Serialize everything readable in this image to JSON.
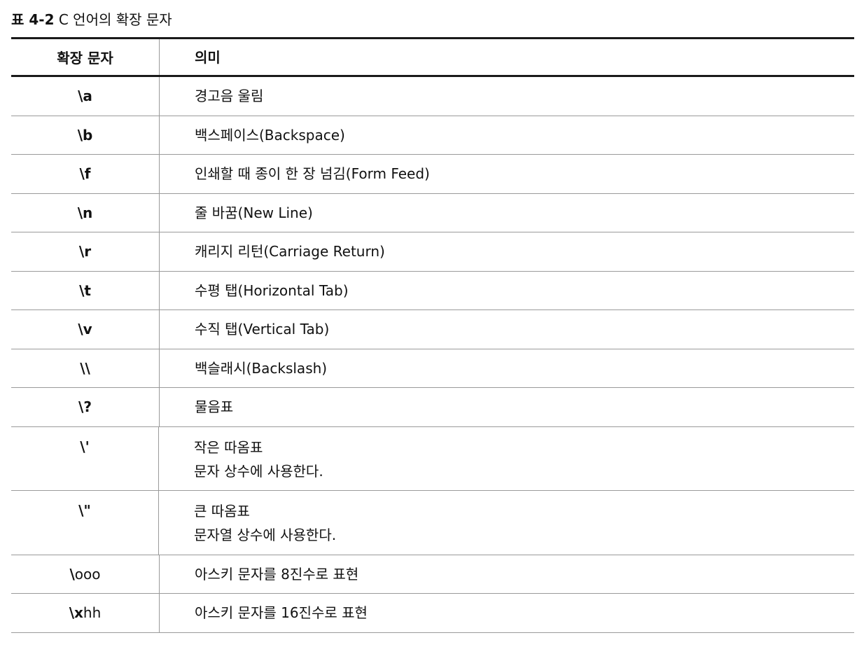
{
  "caption": {
    "label": "표 4-2",
    "title": "C 언어의 확장 문자"
  },
  "table": {
    "headers": [
      "확장 문자",
      "의미"
    ],
    "rows": [
      {
        "code": "\\a",
        "code_suffix": "",
        "meaning": "경고음 울림",
        "meaning2": ""
      },
      {
        "code": "\\b",
        "code_suffix": "",
        "meaning": "백스페이스(Backspace)",
        "meaning2": ""
      },
      {
        "code": "\\f",
        "code_suffix": "",
        "meaning": "인쇄할 때 종이 한 장 넘김(Form Feed)",
        "meaning2": ""
      },
      {
        "code": "\\n",
        "code_suffix": "",
        "meaning": "줄 바꿈(New Line)",
        "meaning2": ""
      },
      {
        "code": "\\r",
        "code_suffix": "",
        "meaning": "캐리지 리턴(Carriage Return)",
        "meaning2": ""
      },
      {
        "code": "\\t",
        "code_suffix": "",
        "meaning": "수평 탭(Horizontal Tab)",
        "meaning2": ""
      },
      {
        "code": "\\v",
        "code_suffix": "",
        "meaning": "수직 탭(Vertical Tab)",
        "meaning2": ""
      },
      {
        "code": "\\\\",
        "code_suffix": "",
        "meaning": "백슬래시(Backslash)",
        "meaning2": ""
      },
      {
        "code": "\\?",
        "code_suffix": "",
        "meaning": "물음표",
        "meaning2": ""
      },
      {
        "code": "\\'",
        "code_suffix": "",
        "meaning": "작은 따옴표",
        "meaning2": "문자 상수에 사용한다."
      },
      {
        "code": "\\\"",
        "code_suffix": "",
        "meaning": "큰 따옴표",
        "meaning2": "문자열 상수에 사용한다."
      },
      {
        "code": "\\",
        "code_suffix": "ooo",
        "meaning": "아스키 문자를 8진수로 표현",
        "meaning2": ""
      },
      {
        "code": "\\x",
        "code_suffix": " hh",
        "meaning": "아스키 문자를 16진수로 표현",
        "meaning2": ""
      }
    ]
  }
}
